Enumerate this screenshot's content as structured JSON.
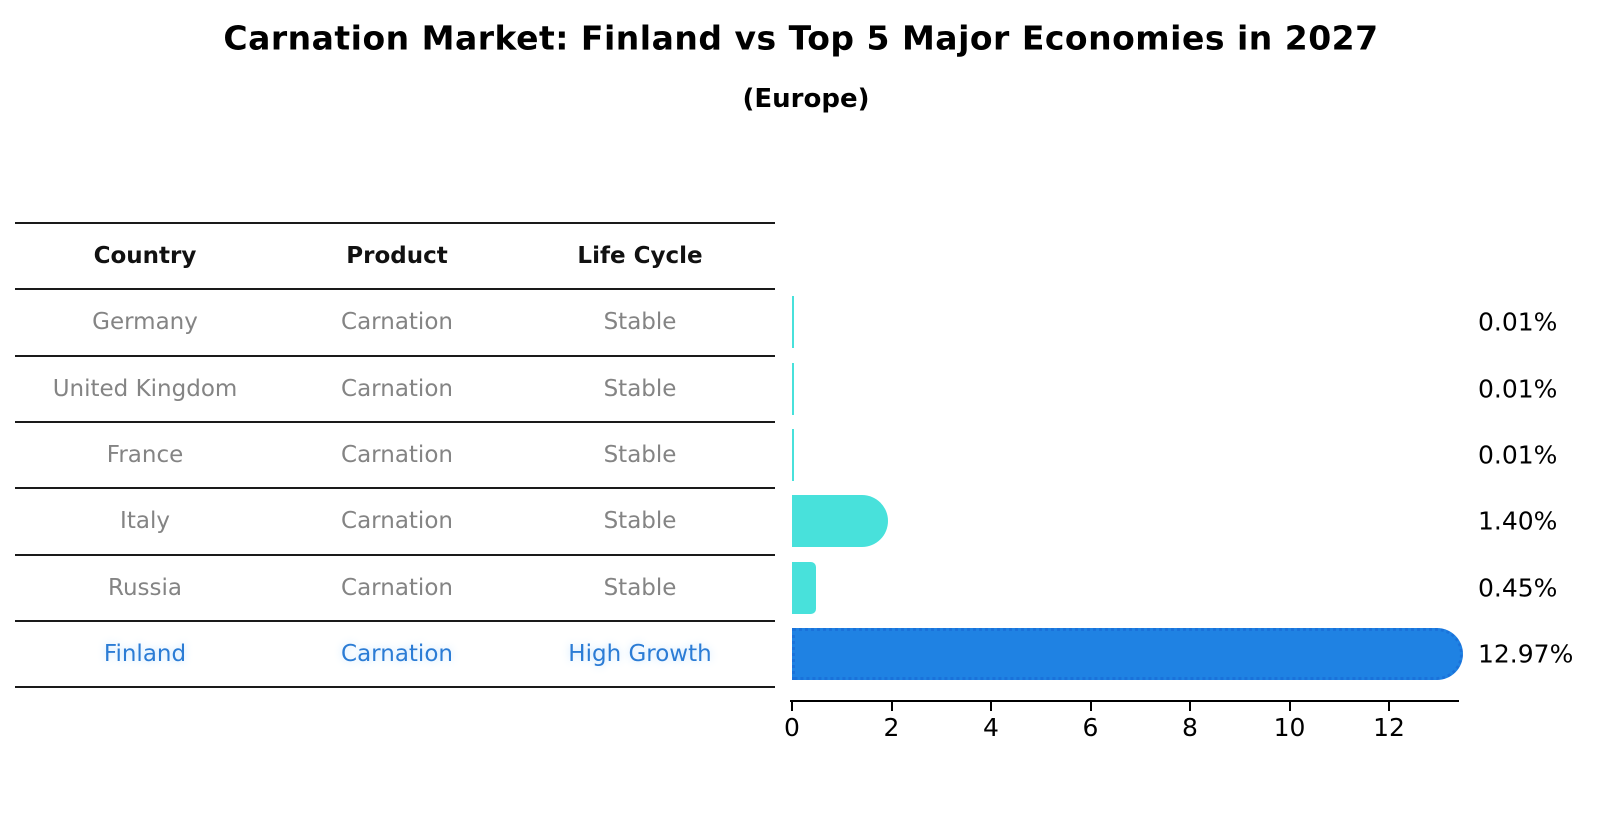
{
  "title": "Carnation Market: Finland vs Top 5 Major Economies in 2027",
  "subtitle": "(Europe)",
  "table": {
    "headers": [
      "Country",
      "Product",
      "Life Cycle"
    ],
    "rows": [
      {
        "country": "Germany",
        "product": "Carnation",
        "life_cycle": "Stable",
        "highlight": false
      },
      {
        "country": "United Kingdom",
        "product": "Carnation",
        "life_cycle": "Stable",
        "highlight": false
      },
      {
        "country": "France",
        "product": "Carnation",
        "life_cycle": "Stable",
        "highlight": false
      },
      {
        "country": "Italy",
        "product": "Carnation",
        "life_cycle": "Stable",
        "highlight": false
      },
      {
        "country": "Russia",
        "product": "Carnation",
        "life_cycle": "Stable",
        "highlight": false
      },
      {
        "country": "Finland",
        "product": "Carnation",
        "life_cycle": "High Growth",
        "highlight": true
      }
    ]
  },
  "chart_data": {
    "type": "bar",
    "orientation": "horizontal",
    "title": "Carnation Market: Finland vs Top 5 Major Economies in 2027",
    "subtitle": "(Europe)",
    "categories": [
      "Germany",
      "United Kingdom",
      "France",
      "Italy",
      "Russia",
      "Finland"
    ],
    "values": [
      0.01,
      0.01,
      0.01,
      1.4,
      0.45,
      12.97
    ],
    "value_labels": [
      "0.01%",
      "0.01%",
      "0.01%",
      "1.40%",
      "0.45%",
      "12.97%"
    ],
    "xticks": [
      0,
      2,
      4,
      6,
      8,
      10,
      12
    ],
    "xlim": [
      0,
      13.4
    ],
    "grid": false,
    "legend": "none",
    "default_bar_color": "#48e1db",
    "highlight_bar_color": "#1f82e3",
    "highlight_text_color": "#2b7cd5",
    "bar_colors": [
      "#48e1db",
      "#48e1db",
      "#48e1db",
      "#48e1db",
      "#48e1db",
      "#1f82e3"
    ]
  }
}
